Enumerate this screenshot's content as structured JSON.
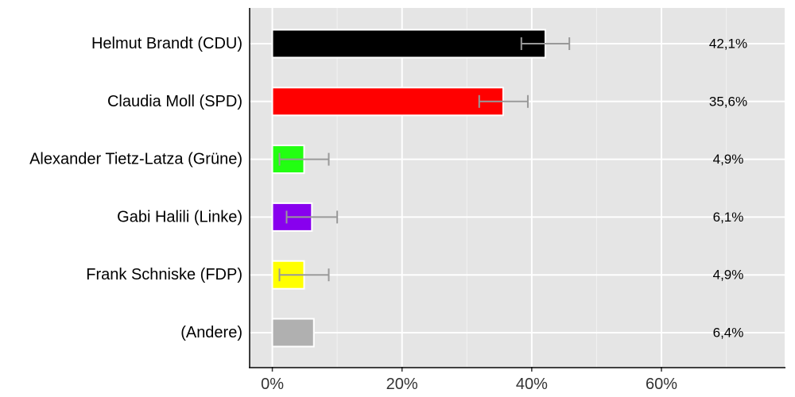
{
  "chart_data": {
    "type": "bar",
    "orientation": "horizontal",
    "categories": [
      "Helmut Brandt (CDU)",
      "Claudia Moll (SPD)",
      "Alexander Tietz-Latza (Grüne)",
      "Gabi Halili (Linke)",
      "Frank Schniske (FDP)",
      "(Andere)"
    ],
    "values": [
      42.1,
      35.6,
      4.9,
      6.1,
      4.9,
      6.4
    ],
    "value_labels": [
      "42,1%",
      "35,6%",
      "4,9%",
      "6,1%",
      "4,9%",
      "6,4%"
    ],
    "error_low": [
      38.4,
      31.9,
      1.1,
      2.2,
      1.1,
      null
    ],
    "error_high": [
      45.8,
      39.4,
      8.7,
      10.0,
      8.7,
      null
    ],
    "colors": [
      "#000000",
      "#ff0000",
      "#22ff11",
      "#8800ee",
      "#ffff00",
      "#b0b0b0"
    ],
    "error_bar_color": "#999999",
    "xlim": [
      -3.5,
      79
    ],
    "xticks": [
      0,
      20,
      40,
      60
    ],
    "xtick_labels": [
      "0%",
      "20%",
      "40%",
      "60%"
    ],
    "grid": true,
    "background": "#e5e5e5",
    "title": "",
    "xlabel": "",
    "ylabel": ""
  }
}
